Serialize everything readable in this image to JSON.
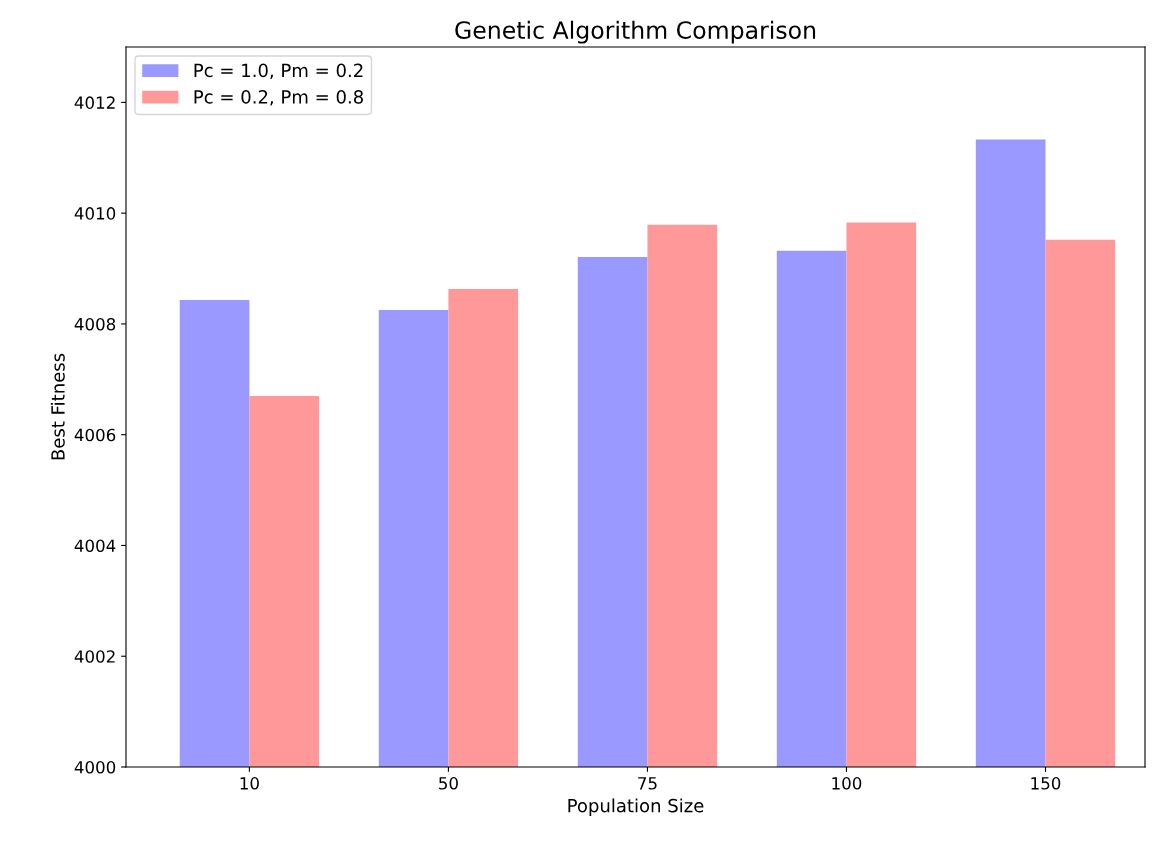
{
  "chart_data": {
    "type": "bar",
    "title": "Genetic Algorithm Comparison",
    "xlabel": "Population Size",
    "ylabel": "Best Fitness",
    "categories": [
      "10",
      "50",
      "75",
      "100",
      "150"
    ],
    "series": [
      {
        "name": "Pc = 1.0, Pm = 0.2",
        "color": "#9999ff",
        "values": [
          4008.43,
          4008.25,
          4009.21,
          4009.32,
          4011.33
        ]
      },
      {
        "name": "Pc = 0.2, Pm = 0.8",
        "color": "#ff9999",
        "values": [
          4006.7,
          4008.63,
          4009.79,
          4009.83,
          4009.52
        ]
      }
    ],
    "ylim": [
      4000,
      4013
    ],
    "yticks": [
      4000,
      4002,
      4004,
      4006,
      4008,
      4010,
      4012
    ],
    "grid": false,
    "legend": "top left"
  }
}
